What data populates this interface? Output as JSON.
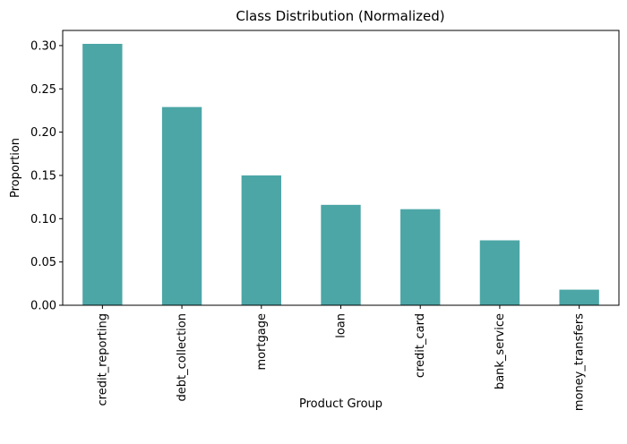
{
  "chart_data": {
    "type": "bar",
    "title": "Class Distribution (Normalized)",
    "xlabel": "Product Group",
    "ylabel": "Proportion",
    "categories": [
      "credit_reporting",
      "debt_collection",
      "mortgage",
      "loan",
      "credit_card",
      "bank_service",
      "money_transfers"
    ],
    "values": [
      0.302,
      0.229,
      0.15,
      0.116,
      0.111,
      0.075,
      0.018
    ],
    "ylim": [
      0,
      0.3175
    ],
    "yticks": [
      0.0,
      0.05,
      0.1,
      0.15,
      0.2,
      0.25,
      0.3
    ],
    "ytick_labels": [
      "0.00",
      "0.05",
      "0.10",
      "0.15",
      "0.20",
      "0.25",
      "0.30"
    ],
    "grid": false,
    "bar_color": "#4ca6a6"
  }
}
